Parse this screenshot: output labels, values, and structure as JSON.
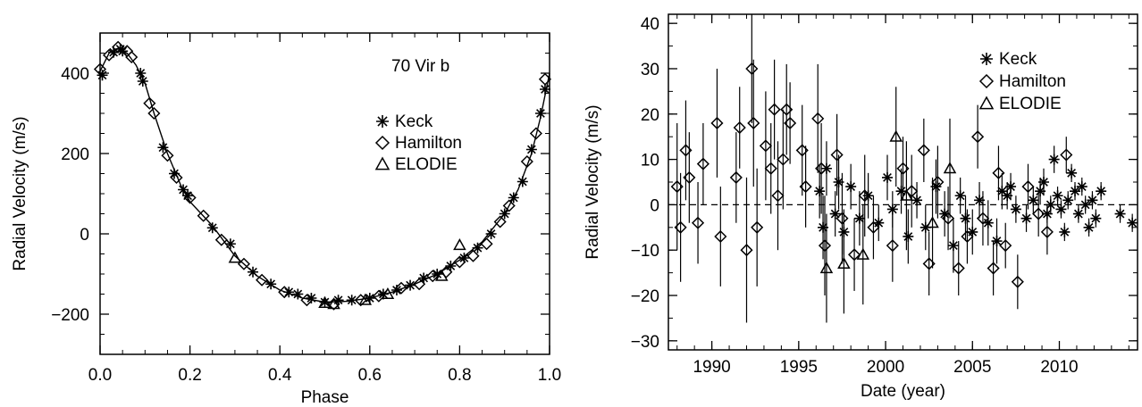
{
  "chart_data": [
    {
      "type": "scatter",
      "title": "",
      "annotation": "70 Vir b",
      "xlabel": "Phase",
      "ylabel": "Radial Velocity (m/s)",
      "xlim": [
        0.0,
        1.0
      ],
      "ylim": [
        -300,
        500
      ],
      "xticks": [
        "0.0",
        "0.2",
        "0.4",
        "0.6",
        "0.8",
        "1.0"
      ],
      "yticks": [
        "−200",
        "0",
        "200",
        "400"
      ],
      "legend": {
        "placement": "right-middle",
        "entries": [
          {
            "label": "Keck",
            "marker": "asterisk"
          },
          {
            "label": "Hamilton",
            "marker": "diamond"
          },
          {
            "label": "ELODIE",
            "marker": "triangle"
          }
        ]
      },
      "grid": false,
      "model_curve": {
        "x": [
          0.0,
          0.02,
          0.04,
          0.06,
          0.08,
          0.1,
          0.12,
          0.15,
          0.18,
          0.2,
          0.25,
          0.3,
          0.35,
          0.4,
          0.45,
          0.5,
          0.55,
          0.6,
          0.65,
          0.7,
          0.75,
          0.8,
          0.85,
          0.9,
          0.93,
          0.96,
          0.98,
          1.0
        ],
        "y": [
          405,
          450,
          462,
          450,
          420,
          375,
          300,
          200,
          120,
          80,
          20,
          -55,
          -105,
          -140,
          -160,
          -170,
          -168,
          -160,
          -145,
          -125,
          -100,
          -65,
          -20,
          50,
          110,
          200,
          290,
          400
        ]
      },
      "series": [
        {
          "name": "Keck",
          "marker": "asterisk",
          "x": [
            0.005,
            0.03,
            0.045,
            0.05,
            0.09,
            0.095,
            0.14,
            0.165,
            0.185,
            0.195,
            0.25,
            0.29,
            0.34,
            0.38,
            0.42,
            0.44,
            0.47,
            0.5,
            0.53,
            0.56,
            0.6,
            0.63,
            0.66,
            0.69,
            0.72,
            0.75,
            0.78,
            0.81,
            0.84,
            0.87,
            0.9,
            0.92,
            0.94,
            0.96,
            0.98,
            0.99
          ],
          "y": [
            395,
            452,
            460,
            455,
            400,
            380,
            215,
            150,
            110,
            95,
            15,
            -25,
            -95,
            -125,
            -145,
            -150,
            -160,
            -170,
            -165,
            -165,
            -160,
            -150,
            -140,
            -128,
            -110,
            -100,
            -80,
            -60,
            -35,
            0,
            50,
            90,
            130,
            210,
            300,
            360
          ]
        },
        {
          "name": "Hamilton",
          "marker": "diamond",
          "x": [
            0.0,
            0.02,
            0.04,
            0.06,
            0.07,
            0.11,
            0.12,
            0.15,
            0.17,
            0.2,
            0.23,
            0.27,
            0.32,
            0.36,
            0.41,
            0.46,
            0.52,
            0.58,
            0.62,
            0.67,
            0.71,
            0.74,
            0.77,
            0.8,
            0.83,
            0.86,
            0.89,
            0.91,
            0.95,
            0.97,
            0.99
          ],
          "y": [
            410,
            445,
            465,
            455,
            440,
            325,
            300,
            195,
            140,
            90,
            45,
            -15,
            -75,
            -115,
            -145,
            -165,
            -175,
            -165,
            -155,
            -135,
            -125,
            -105,
            -95,
            -70,
            -55,
            -25,
            30,
            70,
            180,
            250,
            385
          ]
        },
        {
          "name": "ELODIE",
          "marker": "triangle",
          "x": [
            0.3,
            0.5,
            0.52,
            0.59,
            0.64,
            0.76,
            0.8
          ],
          "y": [
            -60,
            -172,
            -175,
            -165,
            -150,
            -105,
            -28
          ]
        }
      ]
    },
    {
      "type": "scatter",
      "title": "",
      "xlabel": "Date (year)",
      "ylabel": "Radial Velocity (m/s)",
      "xlim": [
        1987.5,
        2014.5
      ],
      "ylim": [
        -32,
        42
      ],
      "xticks": [
        "1990",
        "1995",
        "2000",
        "2005",
        "2010"
      ],
      "yticks": [
        "−30",
        "−20",
        "−10",
        "0",
        "10",
        "20",
        "30",
        "40"
      ],
      "reference_line": {
        "y": 0,
        "style": "dashed"
      },
      "legend": {
        "placement": "top-right",
        "entries": [
          {
            "label": "Keck",
            "marker": "asterisk"
          },
          {
            "label": "Hamilton",
            "marker": "diamond"
          },
          {
            "label": "ELODIE",
            "marker": "triangle"
          }
        ]
      },
      "grid": false,
      "series": [
        {
          "name": "Keck",
          "marker": "asterisk",
          "x": [
            1996.2,
            1996.4,
            1996.6,
            1997.1,
            1997.3,
            1997.6,
            1998.0,
            1998.5,
            1999.0,
            1999.6,
            2000.1,
            2000.4,
            2000.9,
            2001.3,
            2001.8,
            2002.3,
            2002.9,
            2003.4,
            2003.9,
            2004.3,
            2004.6,
            2005.0,
            2005.4,
            2005.9,
            2006.4,
            2006.7,
            2007.0,
            2007.2,
            2007.5,
            2008.1,
            2008.5,
            2008.9,
            2009.1,
            2009.3,
            2009.5,
            2009.7,
            2009.9,
            2010.1,
            2010.3,
            2010.5,
            2010.7,
            2010.9,
            2011.1,
            2011.3,
            2011.5,
            2011.7,
            2011.9,
            2012.1,
            2012.4,
            2013.5,
            2014.2
          ],
          "y": [
            3,
            -5,
            8,
            -2,
            5,
            -6,
            4,
            -3,
            2,
            -4,
            6,
            -1,
            3,
            -7,
            1,
            -5,
            4,
            -2,
            -9,
            2,
            -3,
            -6,
            1,
            -4,
            -8,
            3,
            2,
            4,
            -1,
            -3,
            1,
            3,
            5,
            -2,
            0,
            10,
            2,
            -1,
            -6,
            1,
            7,
            3,
            -2,
            4,
            0,
            -5,
            1,
            -3,
            3,
            -2,
            -4
          ],
          "err": [
            6,
            7,
            6,
            5,
            6,
            5,
            5,
            6,
            5,
            4,
            5,
            4,
            5,
            6,
            4,
            5,
            6,
            5,
            6,
            4,
            5,
            5,
            4,
            5,
            5,
            4,
            3,
            3,
            3,
            3,
            3,
            3,
            3,
            2,
            2,
            3,
            2,
            2,
            2,
            2,
            2,
            2,
            2,
            2,
            2,
            2,
            2,
            2,
            2,
            2,
            2
          ]
        },
        {
          "name": "Hamilton",
          "marker": "diamond",
          "x": [
            1988.0,
            1988.2,
            1988.5,
            1988.7,
            1989.2,
            1989.5,
            1990.3,
            1990.5,
            1991.4,
            1991.6,
            1992.0,
            1992.3,
            1992.4,
            1992.6,
            1993.1,
            1993.4,
            1993.6,
            1993.8,
            1994.1,
            1994.3,
            1994.5,
            1995.2,
            1995.4,
            1996.1,
            1996.3,
            1996.5,
            1997.2,
            1997.5,
            1998.2,
            1998.8,
            1999.3,
            2000.4,
            2001.0,
            2001.5,
            2002.2,
            2002.5,
            2003.0,
            2003.6,
            2004.2,
            2004.7,
            2005.3,
            2005.6,
            2006.2,
            2006.5,
            2006.9,
            2007.6,
            2008.2,
            2008.8,
            2009.3,
            2010.4
          ],
          "y": [
            4,
            -5,
            12,
            6,
            -4,
            9,
            18,
            -7,
            6,
            17,
            -10,
            30,
            18,
            -5,
            13,
            8,
            21,
            2,
            10,
            21,
            18,
            12,
            4,
            19,
            8,
            -9,
            11,
            -3,
            -11,
            2,
            -5,
            -9,
            8,
            3,
            12,
            -13,
            5,
            -3,
            -14,
            -7,
            15,
            -3,
            -14,
            7,
            -9,
            -17,
            4,
            -2,
            -6,
            11
          ],
          "err": [
            14,
            12,
            11,
            10,
            9,
            9,
            12,
            11,
            10,
            9,
            16,
            12,
            14,
            13,
            12,
            10,
            11,
            12,
            11,
            10,
            9,
            10,
            9,
            12,
            10,
            11,
            9,
            10,
            8,
            9,
            7,
            8,
            7,
            8,
            7,
            7,
            8,
            7,
            6,
            6,
            7,
            6,
            6,
            6,
            5,
            6,
            5,
            5,
            5,
            4
          ]
        },
        {
          "name": "ELODIE",
          "marker": "triangle",
          "x": [
            1996.6,
            1997.6,
            1998.7,
            2000.6,
            2001.2,
            2002.7,
            2003.7
          ],
          "y": [
            -14,
            -13,
            -11,
            15,
            2,
            -4,
            8
          ],
          "err": [
            12,
            11,
            11,
            11,
            12,
            10,
            11
          ]
        }
      ]
    }
  ]
}
